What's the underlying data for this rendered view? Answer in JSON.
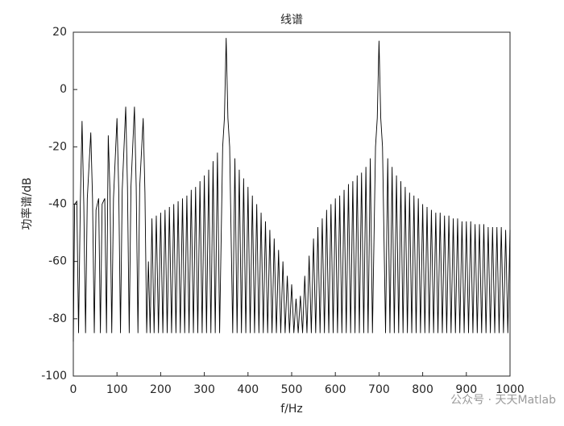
{
  "chart_data": {
    "type": "line",
    "title": "线谱",
    "x_label": "f/Hz",
    "y_label": "功率谱/dB",
    "watermark": "公众号 · 天天Matlab",
    "color": "#000000",
    "xlim": [
      0,
      1000
    ],
    "ylim": [
      -100,
      20
    ],
    "xticks": [
      0,
      100,
      200,
      300,
      400,
      500,
      600,
      700,
      800,
      900,
      1000
    ],
    "yticks": [
      -100,
      -80,
      -60,
      -40,
      -20,
      0,
      20
    ],
    "x": [
      0,
      3,
      8,
      12,
      16,
      20,
      24,
      28,
      32,
      40,
      44,
      48,
      52,
      58,
      62,
      66,
      72,
      76,
      80,
      84,
      88,
      92,
      100,
      104,
      108,
      112,
      120,
      124,
      128,
      132,
      140,
      144,
      148,
      152,
      160,
      164,
      168,
      172,
      176,
      180,
      185,
      190,
      195,
      200,
      205,
      210,
      215,
      220,
      225,
      230,
      235,
      240,
      245,
      250,
      255,
      260,
      265,
      270,
      275,
      280,
      285,
      290,
      295,
      300,
      305,
      310,
      315,
      320,
      325,
      330,
      335,
      342,
      346,
      350,
      354,
      358,
      365,
      370,
      375,
      380,
      385,
      390,
      395,
      400,
      405,
      410,
      415,
      420,
      425,
      430,
      435,
      440,
      445,
      450,
      455,
      460,
      465,
      470,
      475,
      480,
      485,
      490,
      495,
      500,
      505,
      510,
      515,
      520,
      525,
      530,
      535,
      540,
      545,
      550,
      555,
      560,
      565,
      570,
      575,
      580,
      585,
      590,
      595,
      600,
      605,
      610,
      615,
      620,
      625,
      630,
      635,
      640,
      645,
      650,
      655,
      660,
      665,
      670,
      675,
      680,
      685,
      692,
      696,
      700,
      704,
      708,
      715,
      720,
      725,
      730,
      735,
      740,
      745,
      750,
      755,
      760,
      765,
      770,
      775,
      780,
      785,
      790,
      795,
      800,
      805,
      810,
      815,
      820,
      825,
      830,
      835,
      840,
      845,
      850,
      855,
      860,
      865,
      870,
      875,
      880,
      885,
      890,
      895,
      900,
      905,
      910,
      915,
      920,
      925,
      930,
      935,
      940,
      945,
      950,
      955,
      960,
      965,
      970,
      975,
      980,
      985,
      990,
      995,
      1000
    ],
    "values": [
      -88,
      -40,
      -39,
      -85,
      -40,
      -11,
      -40,
      -85,
      -38,
      -15,
      -38,
      -85,
      -42,
      -38,
      -85,
      -40,
      -38,
      -85,
      -16,
      -36,
      -85,
      -38,
      -10,
      -35,
      -85,
      -35,
      -6,
      -34,
      -85,
      -34,
      -6,
      -34,
      -85,
      -34,
      -10,
      -36,
      -85,
      -60,
      -85,
      -45,
      -85,
      -44,
      -85,
      -43,
      -85,
      -42,
      -85,
      -41,
      -85,
      -40,
      -85,
      -39,
      -85,
      -38,
      -85,
      -37,
      -85,
      -35,
      -85,
      -34,
      -85,
      -32,
      -85,
      -30,
      -85,
      -28,
      -85,
      -25,
      -85,
      -22,
      -85,
      -20,
      -10,
      18,
      -10,
      -20,
      -85,
      -24,
      -85,
      -28,
      -85,
      -31,
      -85,
      -34,
      -85,
      -37,
      -85,
      -40,
      -85,
      -43,
      -85,
      -46,
      -85,
      -49,
      -85,
      -52,
      -85,
      -56,
      -85,
      -60,
      -85,
      -65,
      -85,
      -68,
      -85,
      -73,
      -85,
      -72,
      -85,
      -65,
      -85,
      -58,
      -85,
      -52,
      -85,
      -48,
      -85,
      -45,
      -85,
      -42,
      -85,
      -40,
      -85,
      -38,
      -85,
      -37,
      -85,
      -35,
      -85,
      -33,
      -85,
      -32,
      -85,
      -30,
      -85,
      -29,
      -85,
      -27,
      -85,
      -24,
      -85,
      -20,
      -10,
      17,
      -10,
      -20,
      -85,
      -24,
      -85,
      -27,
      -85,
      -30,
      -85,
      -32,
      -85,
      -34,
      -85,
      -36,
      -85,
      -37,
      -85,
      -38,
      -85,
      -40,
      -85,
      -41,
      -85,
      -42,
      -85,
      -43,
      -85,
      -43,
      -85,
      -44,
      -85,
      -44,
      -85,
      -45,
      -85,
      -45,
      -85,
      -46,
      -85,
      -46,
      -85,
      -46,
      -85,
      -47,
      -85,
      -47,
      -85,
      -47,
      -85,
      -48,
      -85,
      -48,
      -85,
      -48,
      -85,
      -48,
      -85,
      -49,
      -85,
      -49
    ]
  }
}
